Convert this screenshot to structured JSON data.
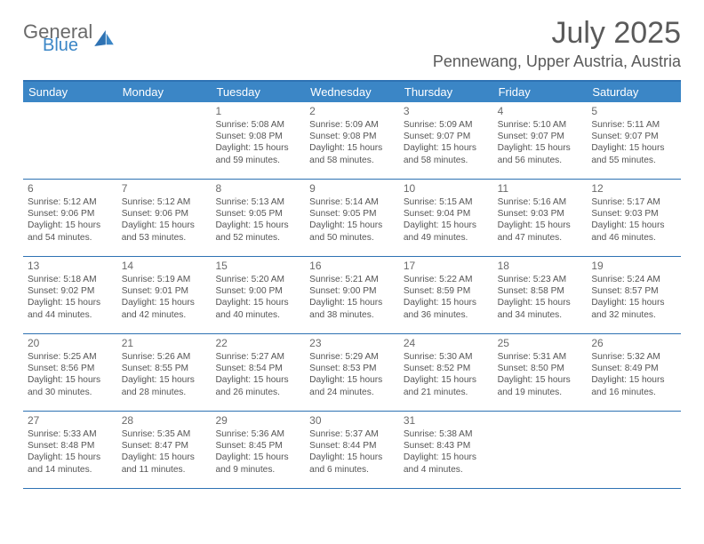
{
  "logo": {
    "general": "General",
    "blue": "Blue"
  },
  "title": "July 2025",
  "location": "Pennewang, Upper Austria, Austria",
  "colors": {
    "header_bg": "#3b86c6",
    "border": "#2e72b3",
    "text_gray": "#5a5a5a",
    "cell_text": "#555555"
  },
  "day_labels": [
    "Sunday",
    "Monday",
    "Tuesday",
    "Wednesday",
    "Thursday",
    "Friday",
    "Saturday"
  ],
  "weeks": [
    [
      null,
      null,
      {
        "n": "1",
        "sr": "5:08 AM",
        "ss": "9:08 PM",
        "dl": "15 hours and 59 minutes."
      },
      {
        "n": "2",
        "sr": "5:09 AM",
        "ss": "9:08 PM",
        "dl": "15 hours and 58 minutes."
      },
      {
        "n": "3",
        "sr": "5:09 AM",
        "ss": "9:07 PM",
        "dl": "15 hours and 58 minutes."
      },
      {
        "n": "4",
        "sr": "5:10 AM",
        "ss": "9:07 PM",
        "dl": "15 hours and 56 minutes."
      },
      {
        "n": "5",
        "sr": "5:11 AM",
        "ss": "9:07 PM",
        "dl": "15 hours and 55 minutes."
      }
    ],
    [
      {
        "n": "6",
        "sr": "5:12 AM",
        "ss": "9:06 PM",
        "dl": "15 hours and 54 minutes."
      },
      {
        "n": "7",
        "sr": "5:12 AM",
        "ss": "9:06 PM",
        "dl": "15 hours and 53 minutes."
      },
      {
        "n": "8",
        "sr": "5:13 AM",
        "ss": "9:05 PM",
        "dl": "15 hours and 52 minutes."
      },
      {
        "n": "9",
        "sr": "5:14 AM",
        "ss": "9:05 PM",
        "dl": "15 hours and 50 minutes."
      },
      {
        "n": "10",
        "sr": "5:15 AM",
        "ss": "9:04 PM",
        "dl": "15 hours and 49 minutes."
      },
      {
        "n": "11",
        "sr": "5:16 AM",
        "ss": "9:03 PM",
        "dl": "15 hours and 47 minutes."
      },
      {
        "n": "12",
        "sr": "5:17 AM",
        "ss": "9:03 PM",
        "dl": "15 hours and 46 minutes."
      }
    ],
    [
      {
        "n": "13",
        "sr": "5:18 AM",
        "ss": "9:02 PM",
        "dl": "15 hours and 44 minutes."
      },
      {
        "n": "14",
        "sr": "5:19 AM",
        "ss": "9:01 PM",
        "dl": "15 hours and 42 minutes."
      },
      {
        "n": "15",
        "sr": "5:20 AM",
        "ss": "9:00 PM",
        "dl": "15 hours and 40 minutes."
      },
      {
        "n": "16",
        "sr": "5:21 AM",
        "ss": "9:00 PM",
        "dl": "15 hours and 38 minutes."
      },
      {
        "n": "17",
        "sr": "5:22 AM",
        "ss": "8:59 PM",
        "dl": "15 hours and 36 minutes."
      },
      {
        "n": "18",
        "sr": "5:23 AM",
        "ss": "8:58 PM",
        "dl": "15 hours and 34 minutes."
      },
      {
        "n": "19",
        "sr": "5:24 AM",
        "ss": "8:57 PM",
        "dl": "15 hours and 32 minutes."
      }
    ],
    [
      {
        "n": "20",
        "sr": "5:25 AM",
        "ss": "8:56 PM",
        "dl": "15 hours and 30 minutes."
      },
      {
        "n": "21",
        "sr": "5:26 AM",
        "ss": "8:55 PM",
        "dl": "15 hours and 28 minutes."
      },
      {
        "n": "22",
        "sr": "5:27 AM",
        "ss": "8:54 PM",
        "dl": "15 hours and 26 minutes."
      },
      {
        "n": "23",
        "sr": "5:29 AM",
        "ss": "8:53 PM",
        "dl": "15 hours and 24 minutes."
      },
      {
        "n": "24",
        "sr": "5:30 AM",
        "ss": "8:52 PM",
        "dl": "15 hours and 21 minutes."
      },
      {
        "n": "25",
        "sr": "5:31 AM",
        "ss": "8:50 PM",
        "dl": "15 hours and 19 minutes."
      },
      {
        "n": "26",
        "sr": "5:32 AM",
        "ss": "8:49 PM",
        "dl": "15 hours and 16 minutes."
      }
    ],
    [
      {
        "n": "27",
        "sr": "5:33 AM",
        "ss": "8:48 PM",
        "dl": "15 hours and 14 minutes."
      },
      {
        "n": "28",
        "sr": "5:35 AM",
        "ss": "8:47 PM",
        "dl": "15 hours and 11 minutes."
      },
      {
        "n": "29",
        "sr": "5:36 AM",
        "ss": "8:45 PM",
        "dl": "15 hours and 9 minutes."
      },
      {
        "n": "30",
        "sr": "5:37 AM",
        "ss": "8:44 PM",
        "dl": "15 hours and 6 minutes."
      },
      {
        "n": "31",
        "sr": "5:38 AM",
        "ss": "8:43 PM",
        "dl": "15 hours and 4 minutes."
      },
      null,
      null
    ]
  ],
  "labels": {
    "sunrise": "Sunrise:",
    "sunset": "Sunset:",
    "daylight": "Daylight:"
  }
}
